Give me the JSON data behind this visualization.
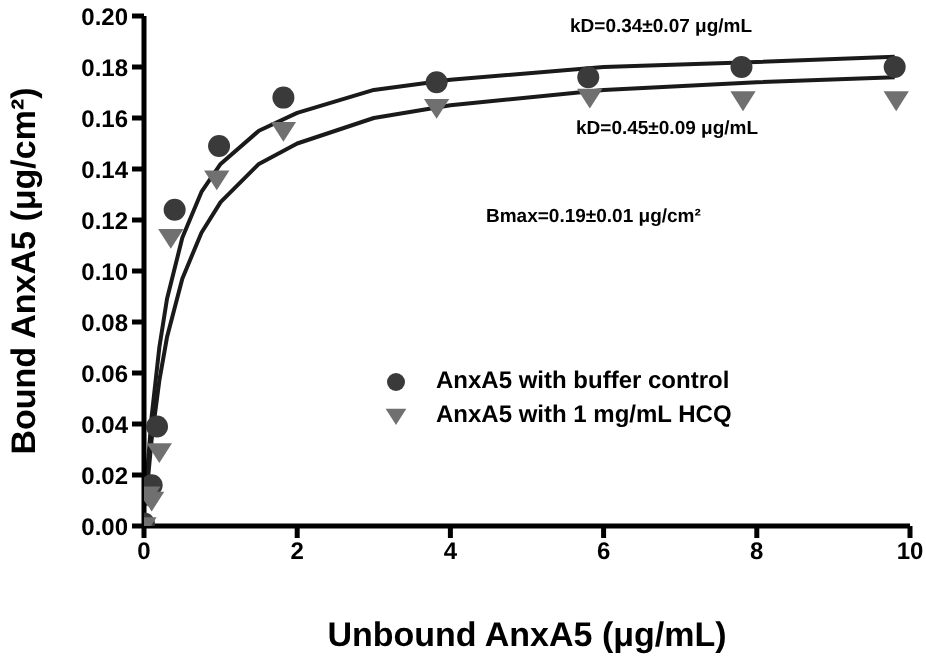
{
  "chart_data": {
    "type": "scatter",
    "xlabel": "Unbound AnxA5 (μg/mL)",
    "ylabel": "Bound AnxA5 (μg/cm²)",
    "xlim": [
      0,
      10
    ],
    "xticks": [
      0,
      2,
      4,
      6,
      8,
      10
    ],
    "ylim": [
      0,
      0.2
    ],
    "yticks": [
      {
        "value": 0,
        "label": "0.00"
      },
      {
        "value": 0.02,
        "label": "0.02"
      },
      {
        "value": 0.04,
        "label": "0.04"
      },
      {
        "value": 0.06,
        "label": "0.06"
      },
      {
        "value": 0.08,
        "label": "0.08"
      },
      {
        "value": 0.1,
        "label": "0.10"
      },
      {
        "value": 0.12,
        "label": "0.12"
      },
      {
        "value": 0.14,
        "label": "0.14"
      },
      {
        "value": 0.16,
        "label": "0.16"
      },
      {
        "value": 0.18,
        "label": "0.18"
      },
      {
        "value": 0.2,
        "label": "0.20"
      }
    ],
    "grid": false,
    "legend": "center",
    "series": [
      {
        "name": "AnxA5 with buffer control",
        "marker": "circle",
        "color": "#3a3a3a",
        "x": [
          0,
          0.1,
          0.17,
          0.4,
          0.98,
          1.82,
          3.82,
          5.8,
          7.8,
          9.8
        ],
        "values": [
          0.001,
          0.016,
          0.039,
          0.124,
          0.149,
          0.168,
          0.174,
          0.176,
          0.18,
          0.18
        ]
      },
      {
        "name": "AnxA5 with 1 mg/mL HCQ",
        "marker": "triangle",
        "color": "#707070",
        "x": [
          0,
          0.05,
          0.1,
          0.2,
          0.35,
          0.95,
          1.82,
          3.82,
          5.82,
          7.82,
          9.82
        ],
        "values": [
          0,
          0.012,
          0.01,
          0.029,
          0.113,
          0.136,
          0.155,
          0.164,
          0.168,
          0.167,
          0.167
        ]
      },
      {
        "type": "line",
        "marker": "none",
        "line_style": "solid",
        "color": "#1a1a1a",
        "x": [
          0.02,
          0.05,
          0.1,
          0.2,
          0.3,
          0.5,
          0.75,
          1,
          1.5,
          2,
          3,
          4,
          6,
          8,
          9.8
        ],
        "values": [
          0.011,
          0.024,
          0.043,
          0.07,
          0.089,
          0.113,
          0.131,
          0.142,
          0.155,
          0.162,
          0.171,
          0.175,
          0.18,
          0.182,
          0.184
        ]
      },
      {
        "type": "line",
        "marker": "none",
        "line_style": "solid",
        "color": "#1a1a1a",
        "x": [
          0.02,
          0.05,
          0.1,
          0.2,
          0.3,
          0.5,
          0.75,
          1,
          1.5,
          2,
          3,
          4,
          6,
          8,
          9.8
        ],
        "values": [
          0.008,
          0.018,
          0.034,
          0.057,
          0.074,
          0.097,
          0.115,
          0.127,
          0.142,
          0.15,
          0.16,
          0.165,
          0.171,
          0.174,
          0.176
        ]
      }
    ],
    "annotations": [
      "kD=0.34±0.07 μg/mL",
      "kD=0.45±0.09 μg/mL",
      "Bmax=0.19±0.01 μg/cm²"
    ]
  }
}
